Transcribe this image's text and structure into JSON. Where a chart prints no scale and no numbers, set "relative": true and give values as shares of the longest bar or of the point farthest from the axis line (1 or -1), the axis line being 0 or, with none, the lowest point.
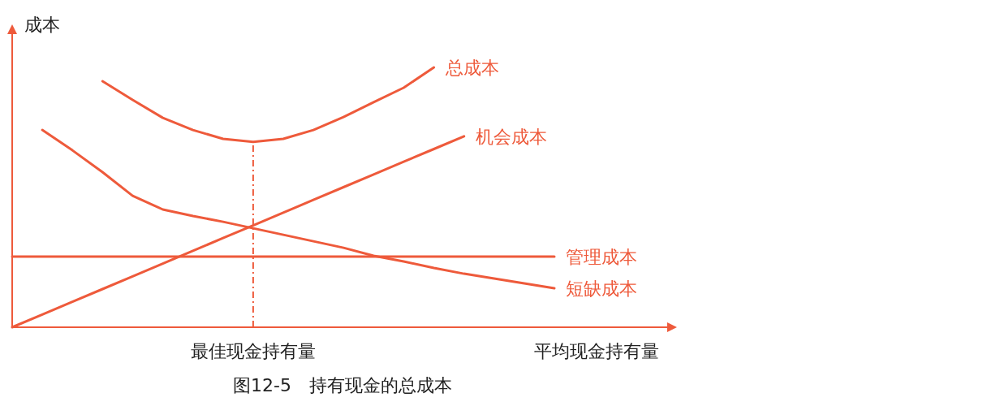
{
  "chart_data": {
    "type": "line",
    "relative": true,
    "title": "图12-5　持有现金的总成本",
    "xlabel": "平均现金持有量",
    "ylabel": "成本",
    "legend": false,
    "line_style": "solid",
    "categories": [
      null,
      null,
      null,
      null,
      null,
      null,
      null,
      null,
      null,
      null,
      null,
      null,
      null,
      null,
      null,
      null,
      null,
      null,
      null
    ],
    "series": [
      {
        "name": "总成本",
        "color": "#ee5a3b",
        "values": [
          null,
          null,
          null,
          0.947,
          0.875,
          0.806,
          0.759,
          0.725,
          0.713,
          0.725,
          0.759,
          0.809,
          0.866,
          0.922,
          1.0,
          null,
          null,
          null,
          null
        ]
      },
      {
        "name": "机会成本",
        "color": "#ee5a3b",
        "values": [
          0,
          0.049,
          0.098,
          0.147,
          0.196,
          0.245,
          0.294,
          0.343,
          0.392,
          0.441,
          0.49,
          0.539,
          0.588,
          0.637,
          0.686,
          0.735,
          null,
          null,
          null
        ]
      },
      {
        "name": "管理成本",
        "color": "#ee5a3b",
        "values": [
          0.272,
          0.272,
          0.272,
          0.272,
          0.272,
          0.272,
          0.272,
          0.272,
          0.272,
          0.272,
          0.272,
          0.272,
          0.272,
          0.272,
          0.272,
          0.272,
          0.272,
          0.272,
          0.272
        ]
      },
      {
        "name": "短缺成本",
        "color": "#ee5a3b",
        "values": [
          null,
          0.759,
          0.681,
          0.597,
          0.506,
          0.453,
          0.428,
          0.406,
          0.381,
          0.356,
          0.331,
          0.306,
          0.275,
          0.253,
          0.228,
          0.206,
          0.1875,
          0.169,
          0.15
        ]
      }
    ],
    "annotations": [
      "最佳现金持有量"
    ]
  }
}
